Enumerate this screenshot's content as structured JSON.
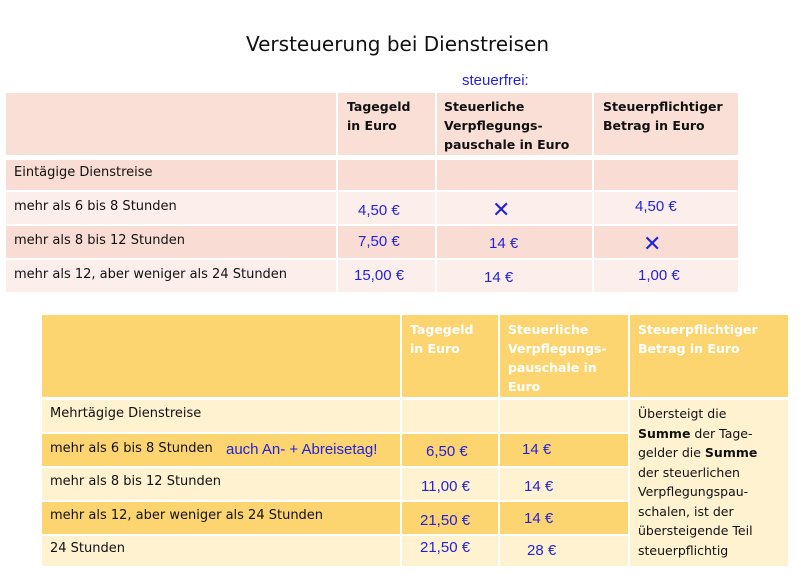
{
  "title": "Versteuerung bei Dienstreisen",
  "annotation_steuerfrei": "steuerfrei:",
  "table1": {
    "headers": [
      "",
      "Tagegeld in Euro",
      "Steuerliche Verpflegungs-pauschale in Euro",
      "Steuerpflichtiger Betrag in Euro"
    ],
    "header_lines": {
      "h1": [
        "Tagegeld",
        "in Euro"
      ],
      "h2": [
        "Steuerliche",
        "Verpflegungs-",
        "pauschale in Euro"
      ],
      "h3": [
        "Steuerpflichtiger",
        "Betrag in Euro"
      ]
    },
    "section_label": "Eintägige Dienstreise",
    "rows": [
      {
        "label": "mehr als 6 bis 8 Stunden",
        "tagegeld": "4,50 €",
        "pauschale": "✕",
        "betrag": "4,50 €"
      },
      {
        "label": "mehr als 8 bis 12 Stunden",
        "tagegeld": "7,50 €",
        "pauschale": "14 €",
        "betrag": "✕"
      },
      {
        "label": "mehr als 12, aber weniger als 24 Stunden",
        "tagegeld": "15,00 €",
        "pauschale": "14 €",
        "betrag": "1,00 €"
      }
    ],
    "colors": {
      "header": "#f9dfd5",
      "band_dark": "#f9dcd4",
      "band_light": "#fcefeb"
    }
  },
  "table2": {
    "header_lines": {
      "h1": [
        "Tagegeld",
        "in Euro"
      ],
      "h2": [
        "Steuerliche",
        "Verpflegungs-",
        "pauschale in",
        "Euro"
      ],
      "h3": [
        "Steuerpflichtiger",
        "Betrag in Euro"
      ]
    },
    "section_label": "Mehrtägige Dienstreise",
    "annotation_row1": "auch An- + Abreisetag!",
    "rows": [
      {
        "label": "mehr als 6 bis 8 Stunden",
        "tagegeld": "6,50 €",
        "pauschale": "14 €"
      },
      {
        "label": "mehr als 8 bis 12 Stunden",
        "tagegeld": "11,00 €",
        "pauschale": "14 €"
      },
      {
        "label": "mehr als 12, aber weniger als 24 Stunden",
        "tagegeld": "21,50 €",
        "pauschale": "14 €"
      },
      {
        "label": "24 Stunden",
        "tagegeld": "21,50 €",
        "pauschale": "28 €"
      }
    ],
    "note_parts": {
      "p1": "Übersteigt die",
      "b1": "Summe",
      "p2": " der Tage-",
      "p3": "gelder die ",
      "b2": "Summe",
      "p4": "der steuerlichen",
      "p5": "Verpflegungspau-",
      "p6": "schalen, ist der",
      "p7": "übersteigende Teil",
      "p8": "steuerpflichtig"
    },
    "colors": {
      "header": "#fcd571",
      "band_dark": "#fcd571",
      "band_light": "#fef2d0"
    }
  }
}
